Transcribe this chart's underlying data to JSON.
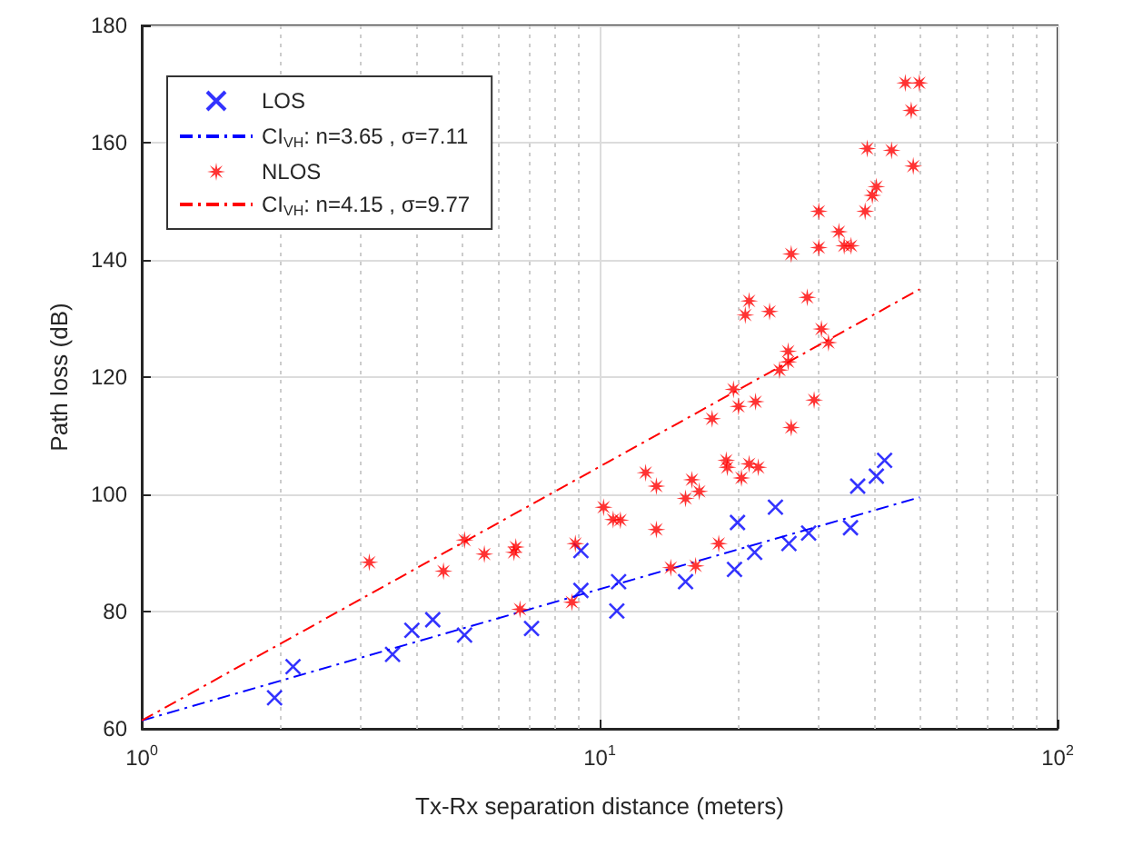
{
  "chart_data": {
    "type": "scatter",
    "xlabel": "Tx-Rx separation distance (meters)",
    "ylabel": "Path loss (dB)",
    "log": "x",
    "grid": true,
    "legend": "top left",
    "xlim": [
      1,
      100
    ],
    "xticks": [
      {
        "value": 1,
        "label": "10$^{0}$"
      },
      {
        "value": 10,
        "label": "10$^{1}$"
      },
      {
        "value": 100,
        "label": "10$^{2}$"
      }
    ],
    "ylim": [
      60,
      180
    ],
    "yticks": [
      60,
      80,
      100,
      120,
      140,
      160,
      180
    ],
    "series": [
      {
        "name": "LOS",
        "marker": "cross",
        "color": "#0000ff",
        "x": [
          1.95,
          2.14,
          3.53,
          3.89,
          4.32,
          5.07,
          7.1,
          9.1,
          9.1,
          10.9,
          11.0,
          15.4,
          19.7,
          20.0,
          21.8,
          24.2,
          25.9,
          28.6,
          35.3,
          36.6,
          40.2,
          41.9
        ],
        "values": [
          65.3,
          70.6,
          72.7,
          76.8,
          78.6,
          76.0,
          77.1,
          90.4,
          83.6,
          80.1,
          85.1,
          85.1,
          87.2,
          95.2,
          90.1,
          97.8,
          91.6,
          93.4,
          94.3,
          101.4,
          103.1,
          105.8
        ]
      },
      {
        "name": "CI$_{VH}$: n=3.65 , σ=7.11",
        "type": "line",
        "line_style": "dashed",
        "marker": "none",
        "color": "#0000ff",
        "x": [
          1,
          50
        ],
        "values": [
          61.4,
          99.5
        ]
      },
      {
        "name": "NLOS",
        "marker": "star",
        "color": "#ff0000",
        "x": [
          3.14,
          4.56,
          5.07,
          5.6,
          6.56,
          6.5,
          6.7,
          8.7,
          8.85,
          10.2,
          10.7,
          11.1,
          12.6,
          13.3,
          13.3,
          14.3,
          16.2,
          15.4,
          15.9,
          16.5,
          18.2,
          18.9,
          19.0,
          20.4,
          21.2,
          22.2,
          17.6,
          26.2,
          20.1,
          21.9,
          19.6,
          29.4,
          24.7,
          25.8,
          25.8,
          31.6,
          30.5,
          20.8,
          23.5,
          21.2,
          28.4,
          26.2,
          30.1,
          33.3,
          34.2,
          35.4,
          30.1,
          38.0,
          39.4,
          40.2,
          38.4,
          43.4,
          48.4,
          47.9,
          46.5,
          49.9
        ],
        "values": [
          88.4,
          86.9,
          92.2,
          89.8,
          91.0,
          90.1,
          80.4,
          81.6,
          91.6,
          97.8,
          95.7,
          95.6,
          103.7,
          101.4,
          94.0,
          87.5,
          87.8,
          99.3,
          102.5,
          100.5,
          91.6,
          105.8,
          104.6,
          102.8,
          105.2,
          104.6,
          112.9,
          111.4,
          115.0,
          115.8,
          117.9,
          116.1,
          121.2,
          122.6,
          124.4,
          125.9,
          128.2,
          130.6,
          131.2,
          133.0,
          133.6,
          141.0,
          142.1,
          144.8,
          142.4,
          142.4,
          148.3,
          148.3,
          151.0,
          152.5,
          159.0,
          158.7,
          156.0,
          165.5,
          170.2,
          170.2
        ]
      },
      {
        "name": "CI$_{VH}$: n=4.15 , σ=9.77",
        "type": "line",
        "line_style": "dashed",
        "marker": "none",
        "color": "#ff0000",
        "x": [
          1,
          50
        ],
        "values": [
          61.4,
          135.0
        ]
      }
    ]
  }
}
